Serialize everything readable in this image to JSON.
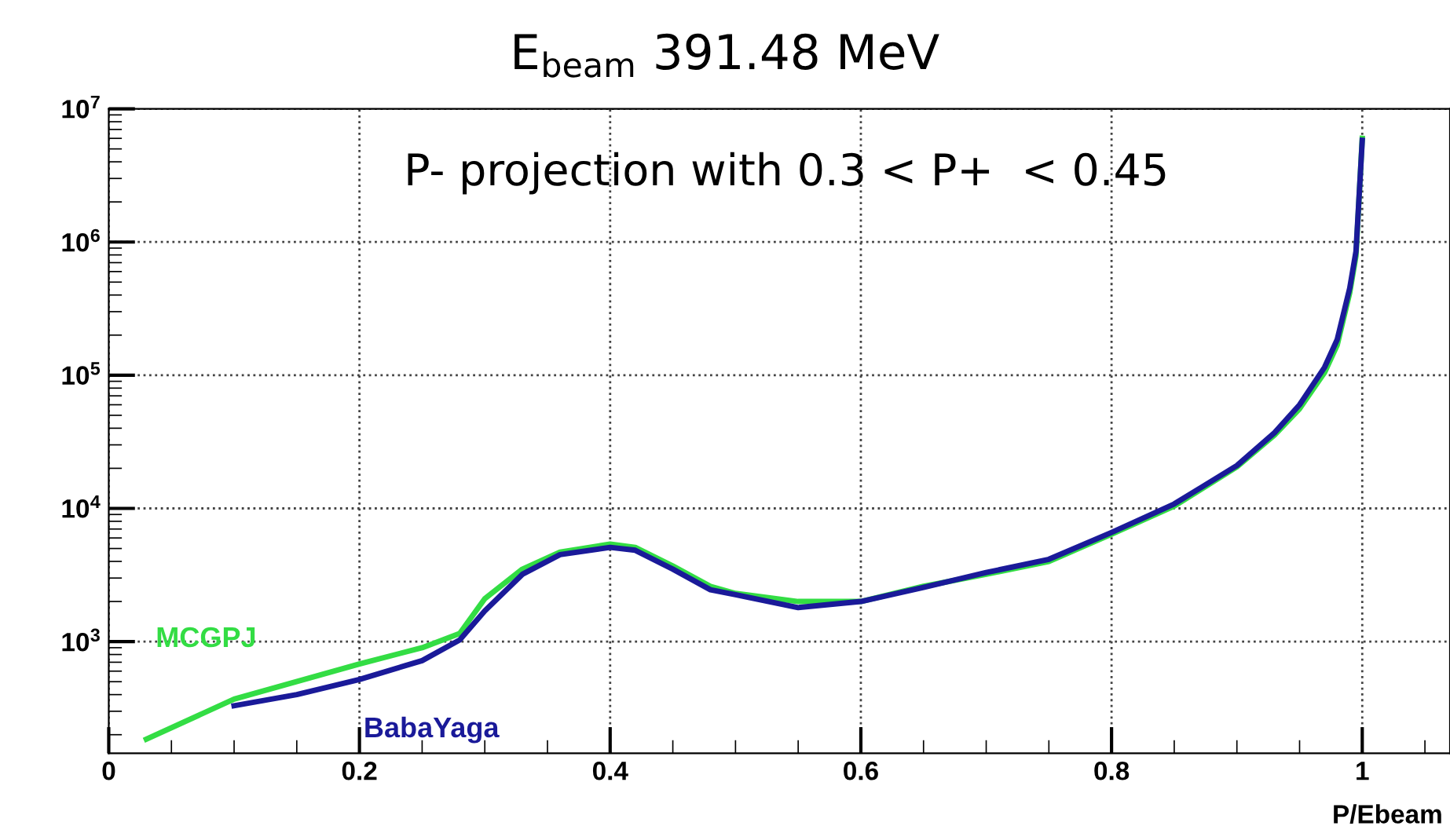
{
  "chart_data": {
    "type": "line",
    "title": "E$_{beam}$ 391.48 MeV",
    "xlabel": "P/Ebeam",
    "annotations": [
      "P- projection with 0.3 < P+  < 0.45"
    ],
    "xlim": [
      0,
      1.07
    ],
    "xticks": [
      0,
      0.2,
      0.4,
      0.6,
      0.8,
      1
    ],
    "ylim": [
      145,
      10000000
    ],
    "yticks": [
      {
        "value": 1000,
        "label": "10$^{3}$"
      },
      {
        "value": 10000,
        "label": "10$^{4}$"
      },
      {
        "value": 100000,
        "label": "10$^{5}$"
      },
      {
        "value": 1000000,
        "label": "10$^{6}$"
      },
      {
        "value": 10000000,
        "label": "10$^{7}$"
      }
    ],
    "log": "y",
    "grid": true,
    "series": [
      {
        "name": "MCGPJ",
        "color": "#33dd44",
        "x": [
          0.03,
          0.1,
          0.2,
          0.25,
          0.28,
          0.3,
          0.33,
          0.36,
          0.4,
          0.42,
          0.45,
          0.48,
          0.5,
          0.55,
          0.6,
          0.65,
          0.7,
          0.75,
          0.8,
          0.85,
          0.9,
          0.93,
          0.95,
          0.97,
          0.98,
          0.99,
          0.995,
          1.0
        ],
        "values": [
          185,
          370,
          680,
          900,
          1150,
          2100,
          3500,
          4700,
          5400,
          5100,
          3700,
          2600,
          2300,
          2000,
          2000,
          2600,
          3200,
          4000,
          6400,
          10400,
          20500,
          35500,
          56000,
          105000,
          168000,
          415000,
          790000,
          6000000
        ]
      },
      {
        "name": "BabaYaga",
        "color": "#1a1a99",
        "x": [
          0.1,
          0.15,
          0.2,
          0.25,
          0.28,
          0.3,
          0.33,
          0.36,
          0.4,
          0.42,
          0.45,
          0.48,
          0.5,
          0.55,
          0.6,
          0.65,
          0.7,
          0.75,
          0.8,
          0.85,
          0.9,
          0.93,
          0.95,
          0.97,
          0.98,
          0.99,
          0.995,
          1.0
        ],
        "values": [
          330,
          400,
          520,
          720,
          1030,
          1700,
          3200,
          4500,
          5100,
          4850,
          3500,
          2450,
          2250,
          1800,
          2000,
          2550,
          3300,
          4150,
          6600,
          10800,
          21000,
          37000,
          60000,
          115000,
          185000,
          450000,
          850000,
          5800000
        ]
      }
    ]
  }
}
